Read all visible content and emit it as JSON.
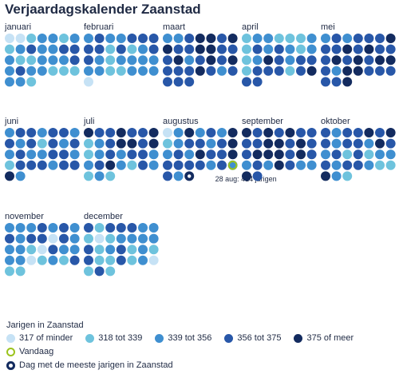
{
  "title": "Verjaardagskalender Zaanstad",
  "chart_data": {
    "type": "calendar-dot-grid",
    "months": [
      {
        "name": "januari",
        "days": [
          0,
          0,
          1,
          2,
          2,
          1,
          2,
          1,
          2,
          3,
          2,
          2,
          3,
          3,
          2,
          1,
          1,
          2,
          2,
          2,
          3,
          2,
          3,
          2,
          2,
          1,
          1,
          1,
          2,
          2,
          1
        ]
      },
      {
        "name": "februari",
        "days": [
          2,
          3,
          2,
          2,
          3,
          3,
          3,
          3,
          3,
          1,
          3,
          1,
          2,
          3,
          3,
          2,
          1,
          2,
          2,
          2,
          2,
          2,
          2,
          1,
          1,
          2,
          2,
          2,
          0
        ]
      },
      {
        "name": "maart",
        "days": [
          2,
          2,
          3,
          4,
          4,
          3,
          4,
          4,
          3,
          3,
          4,
          4,
          3,
          3,
          3,
          4,
          2,
          3,
          4,
          3,
          4,
          3,
          3,
          3,
          4,
          3,
          2,
          3,
          3,
          3,
          3
        ]
      },
      {
        "name": "april",
        "days": [
          1,
          2,
          2,
          1,
          1,
          1,
          2,
          1,
          3,
          2,
          3,
          2,
          1,
          2,
          1,
          2,
          4,
          3,
          2,
          3,
          3,
          1,
          3,
          3,
          3,
          1,
          3,
          4,
          3,
          3
        ]
      },
      {
        "name": "mei",
        "days": [
          2,
          3,
          2,
          3,
          3,
          3,
          4,
          3,
          3,
          4,
          3,
          4,
          3,
          3,
          3,
          4,
          3,
          4,
          3,
          4,
          4,
          3,
          2,
          4,
          4,
          3,
          3,
          3,
          3,
          3,
          4
        ]
      },
      {
        "name": "juni",
        "days": [
          2,
          3,
          3,
          2,
          3,
          3,
          2,
          3,
          2,
          3,
          1,
          3,
          2,
          3,
          2,
          3,
          2,
          2,
          3,
          3,
          2,
          1,
          3,
          3,
          3,
          2,
          3,
          3,
          4,
          2
        ]
      },
      {
        "name": "juli",
        "days": [
          4,
          3,
          3,
          4,
          3,
          3,
          4,
          1,
          2,
          3,
          4,
          4,
          3,
          4,
          1,
          2,
          3,
          2,
          3,
          3,
          2,
          2,
          3,
          4,
          2,
          1,
          3,
          2,
          1,
          2,
          1
        ]
      },
      {
        "name": "augustus",
        "days": [
          0,
          2,
          4,
          2,
          3,
          2,
          4,
          1,
          2,
          3,
          3,
          2,
          3,
          4,
          2,
          3,
          2,
          4,
          3,
          3,
          4,
          3,
          3,
          3,
          3,
          2,
          3,
          "V",
          3,
          2,
          "M"
        ]
      },
      {
        "name": "september",
        "days": [
          4,
          3,
          4,
          3,
          4,
          3,
          3,
          3,
          3,
          4,
          4,
          3,
          4,
          3,
          3,
          4,
          4,
          4,
          3,
          4,
          3,
          2,
          3,
          2,
          4,
          3,
          2,
          2,
          4,
          3
        ]
      },
      {
        "name": "oktober",
        "days": [
          3,
          2,
          3,
          3,
          4,
          3,
          4,
          3,
          2,
          3,
          3,
          2,
          4,
          3,
          2,
          3,
          1,
          3,
          1,
          2,
          2,
          3,
          2,
          3,
          3,
          2,
          1,
          1,
          4,
          2,
          1
        ]
      },
      {
        "name": "november",
        "days": [
          2,
          2,
          2,
          3,
          2,
          3,
          2,
          3,
          2,
          3,
          3,
          0,
          3,
          2,
          2,
          2,
          1,
          0,
          3,
          2,
          2,
          2,
          2,
          0,
          1,
          2,
          1,
          3,
          1,
          1
        ]
      },
      {
        "name": "december",
        "days": [
          3,
          1,
          3,
          3,
          3,
          2,
          2,
          1,
          0,
          1,
          2,
          2,
          2,
          2,
          3,
          1,
          2,
          3,
          1,
          2,
          1,
          3,
          1,
          1,
          3,
          1,
          2,
          0,
          1,
          3,
          1
        ]
      }
    ],
    "bins": [
      "317 of minder",
      "318 tot 339",
      "339 tot 356",
      "356 tot 375",
      "375 of meer"
    ],
    "bin_colors": [
      "#c6e2f5",
      "#6ec3dd",
      "#3f8fd0",
      "#2857a8",
      "#132b5f"
    ],
    "today_color": "#9bc31d",
    "max_dot_color": "#132b5f",
    "callout": "28 aug: 414 jarigen"
  },
  "legend": {
    "title": "Jarigen in Zaanstad",
    "items": [
      "317 of minder",
      "318 tot 339",
      "339 tot 356",
      "356 tot 375",
      "375 of meer"
    ],
    "today": "Vandaag",
    "max": "Dag met de meeste jarigen in Zaanstad"
  }
}
